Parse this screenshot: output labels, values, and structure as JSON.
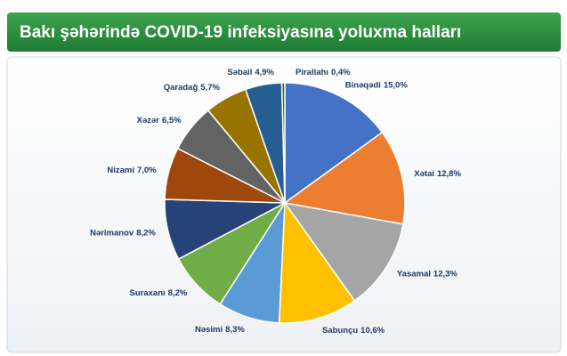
{
  "chart_data": {
    "type": "pie",
    "title": "Bakı şəhərində COVID-19 infeksiyasına yoluxma halları",
    "categories": [
      "Binəqədi",
      "Xətai",
      "Yasamal",
      "Sabunçu",
      "Nəsimi",
      "Suraxanı",
      "Nərimanov",
      "Nizami",
      "Xəzər",
      "Qaradağ",
      "Səbail",
      "Pirallahı"
    ],
    "values": [
      15.0,
      12.8,
      12.3,
      10.6,
      8.3,
      8.2,
      8.2,
      7.0,
      6.5,
      5.7,
      4.9,
      0.4
    ],
    "value_labels": [
      "15,0%",
      "12,8%",
      "12,3%",
      "10,6%",
      "8,3%",
      "8,2%",
      "8,2%",
      "7,0%",
      "6,5%",
      "5,7%",
      "4,9%",
      "0,4%"
    ],
    "colors": [
      "#4472c4",
      "#ed7d31",
      "#a5a5a5",
      "#ffc000",
      "#5b9bd5",
      "#70ad47",
      "#264478",
      "#9e480e",
      "#636363",
      "#997300",
      "#255e91",
      "#43682b"
    ]
  }
}
